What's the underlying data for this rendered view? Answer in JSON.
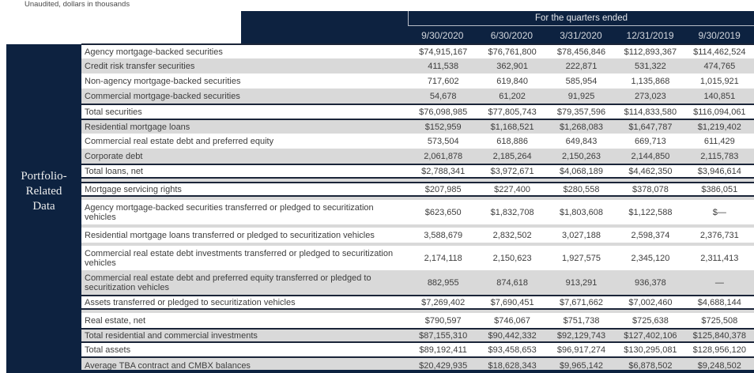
{
  "meta": {
    "note": "Unaudited, dollars in thousands"
  },
  "header": {
    "group_label": "For the quarters ended",
    "columns": [
      "9/30/2020",
      "6/30/2020",
      "3/31/2020",
      "12/31/2019",
      "9/30/2019"
    ]
  },
  "sidebar": {
    "label_lines": [
      "Portfolio-",
      "Related",
      "Data"
    ]
  },
  "colors": {
    "navy": "#0d2240",
    "gray_row": "#d9d9d9",
    "dark_rule": "#1a2438",
    "body_text": "#3d3d3d",
    "header_text": "#d2d6dc"
  },
  "table": {
    "rows": [
      {
        "type": "data",
        "label": "Agency mortgage-backed securities",
        "values": [
          "$74,915,167",
          "$76,761,800",
          "$78,456,846",
          "$112,893,367",
          "$114,462,524"
        ],
        "bg": "white",
        "bt": true
      },
      {
        "type": "data",
        "label": "Credit risk transfer securities",
        "values": [
          "411,538",
          "362,901",
          "222,871",
          "531,322",
          "474,765"
        ],
        "bg": "gray"
      },
      {
        "type": "data",
        "label": "Non-agency mortgage-backed securities",
        "values": [
          "717,602",
          "619,840",
          "585,954",
          "1,135,868",
          "1,015,921"
        ],
        "bg": "white"
      },
      {
        "type": "data",
        "label": "Commercial mortgage-backed securities",
        "values": [
          "54,678",
          "61,202",
          "91,925",
          "273,023",
          "140,851"
        ],
        "bg": "gray"
      },
      {
        "type": "data",
        "label": "Total securities",
        "values": [
          "$76,098,985",
          "$77,805,743",
          "$79,357,596",
          "$114,833,580",
          "$116,094,061"
        ],
        "bg": "white",
        "bt": true
      },
      {
        "type": "data",
        "label": "Residential mortgage loans",
        "values": [
          "$152,959",
          "$1,168,521",
          "$1,268,083",
          "$1,647,787",
          "$1,219,402"
        ],
        "bg": "gray",
        "bt": true
      },
      {
        "type": "data",
        "label": "Commercial real estate debt and preferred equity",
        "values": [
          "573,504",
          "618,886",
          "649,843",
          "669,713",
          "611,429"
        ],
        "bg": "white"
      },
      {
        "type": "data",
        "label": "Corporate debt",
        "values": [
          "2,061,878",
          "2,185,264",
          "2,150,263",
          "2,144,850",
          "2,115,783"
        ],
        "bg": "gray"
      },
      {
        "type": "data",
        "label": "Total loans, net",
        "values": [
          "$2,788,341",
          "$3,972,671",
          "$4,068,189",
          "$4,462,350",
          "$3,946,614"
        ],
        "bg": "white",
        "bt": true,
        "bb": true
      },
      {
        "type": "spacer"
      },
      {
        "type": "data",
        "label": "Mortgage servicing rights",
        "values": [
          "$207,985",
          "$227,400",
          "$280,558",
          "$378,078",
          "$386,051"
        ],
        "bg": "white",
        "bt": true,
        "bb": true
      },
      {
        "type": "spacer"
      },
      {
        "type": "data",
        "label": "Agency mortgage-backed securities transferred or pledged to securitization vehicles",
        "values": [
          "$623,650",
          "$1,832,708",
          "$1,803,608",
          "$1,122,588",
          "$—"
        ],
        "bg": "white",
        "tall": true
      },
      {
        "type": "spacer"
      },
      {
        "type": "data",
        "label": "Residential mortgage loans transferred or pledged to securitization vehicles",
        "values": [
          "3,588,679",
          "2,832,502",
          "3,027,188",
          "2,598,374",
          "2,376,731"
        ],
        "bg": "white"
      },
      {
        "type": "spacer"
      },
      {
        "type": "data",
        "label": "Commercial real estate debt investments transferred or pledged to securitization vehicles",
        "values": [
          "2,174,118",
          "2,150,623",
          "1,927,575",
          "2,345,120",
          "2,311,413"
        ],
        "bg": "white",
        "tall": true
      },
      {
        "type": "data",
        "label": "Commercial real estate debt and preferred equity transferred or pledged to securitization vehicles",
        "values": [
          "882,955",
          "874,618",
          "913,291",
          "936,378",
          "—"
        ],
        "bg": "gray",
        "tall": true
      },
      {
        "type": "data",
        "label": "Assets transferred or pledged to securitization vehicles",
        "values": [
          "$7,269,402",
          "$7,690,451",
          "$7,671,662",
          "$7,002,460",
          "$4,688,144"
        ],
        "bg": "white",
        "bt": true,
        "bb": true
      },
      {
        "type": "spacer"
      },
      {
        "type": "data",
        "label": "Real estate, net",
        "values": [
          "$790,597",
          "$746,067",
          "$751,738",
          "$725,638",
          "$725,508"
        ],
        "bg": "white"
      },
      {
        "type": "data",
        "label": "Total residential and commercial investments",
        "values": [
          "$87,155,310",
          "$90,442,332",
          "$92,129,743",
          "$127,402,106",
          "$125,840,378"
        ],
        "bg": "gray",
        "bt": true,
        "bb": true
      },
      {
        "type": "data",
        "label": "Total assets",
        "values": [
          "$89,192,411",
          "$93,458,653",
          "$96,917,274",
          "$130,295,081",
          "$128,956,120"
        ],
        "bg": "white",
        "bb": true
      },
      {
        "type": "data",
        "label": "Average TBA contract and CMBX balances",
        "values": [
          "$20,429,935",
          "$18,628,343",
          "$9,965,142",
          "$6,878,502",
          "$9,248,502"
        ],
        "bg": "gray"
      }
    ]
  }
}
